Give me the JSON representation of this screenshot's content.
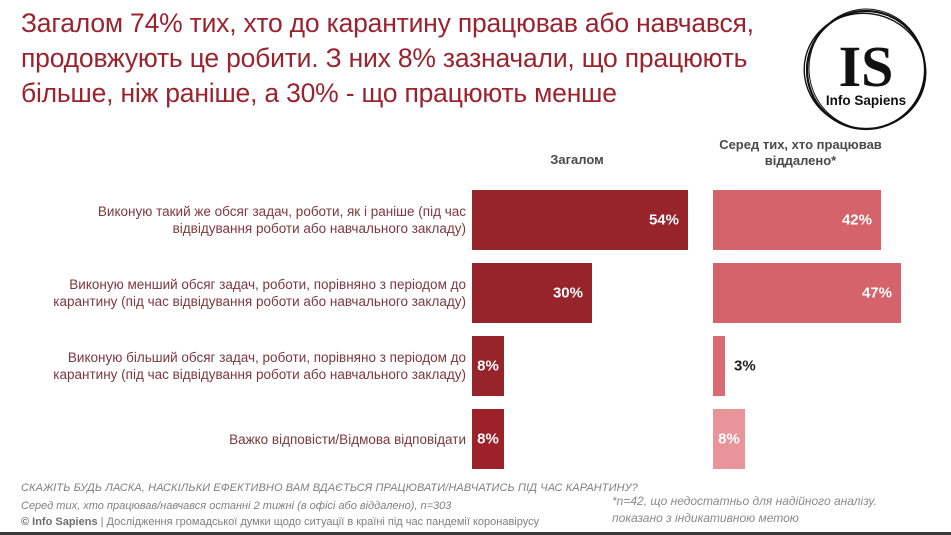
{
  "title": "Загалом 74% тих, хто до карантину працював або навчався, продовжують це робити. З них 8% зазначали, що працюють більше, ніж раніше, а 30% - що працюють менше",
  "logo": {
    "initials": "IS",
    "name": "Info Sapiens"
  },
  "columns": {
    "overall": "Загалом",
    "remote": "Серед тих, хто працював віддалено*"
  },
  "chart_data": {
    "type": "bar",
    "orientation": "horizontal",
    "value_suffix": "%",
    "xlim": [
      0,
      57
    ],
    "grid": false,
    "categories": [
      "Виконую такий же обсяг задач, роботи, як і раніше (під час відвідування роботи або навчального закладу)",
      "Виконую менший обсяг задач, роботи, порівняно з періодом до карантину (під час відвідування роботи або навчального закладу)",
      "Виконую більший обсяг задач, роботи, порівняно з періодом до карантину (під час відвідування роботи або навчального закладу)",
      "Важко відповісти/Відмова відповідати"
    ],
    "series": [
      {
        "name": "Загалом",
        "values": [
          54,
          30,
          8,
          8
        ],
        "colors": [
          "#97232B",
          "#97232B",
          "#97232B",
          "#9D2129"
        ]
      },
      {
        "name": "Серед тих, хто працював віддалено*",
        "values": [
          42,
          47,
          3,
          8
        ],
        "colors": [
          "#D5636C",
          "#D5636C",
          "#DA6A72",
          "#E9939B"
        ]
      }
    ]
  },
  "footer": {
    "question": "СКАЖІТЬ БУДЬ ЛАСКА, НАСКІЛЬКИ ЕФЕКТИВНО ВАМ ВДАЄТЬСЯ ПРАЦЮВАТИ/НАВЧАТИСЬ ПІД ЧАС КАРАНТИНУ?",
    "sample": "Серед тих, хто працював/навчався останні 2 тижні (в офісі або віддалено), n=303",
    "copyright": "© Info Sapiens",
    "description": "| Дослідження громадської думки щодо ситуації в країні під час пандемії коронавірусу"
  },
  "footnote": {
    "line1": "*n=42, що недостатньо для надійного аналізу.",
    "line2": "показано з індикативною метою"
  },
  "colors": {
    "title": "#9B232F",
    "bar_overall": "#97232B",
    "bar_remote": "#D5636C",
    "bar_remote_light": "#E9939B",
    "category_label": "#7E383D",
    "footer_gray": "#7F7F7F"
  }
}
